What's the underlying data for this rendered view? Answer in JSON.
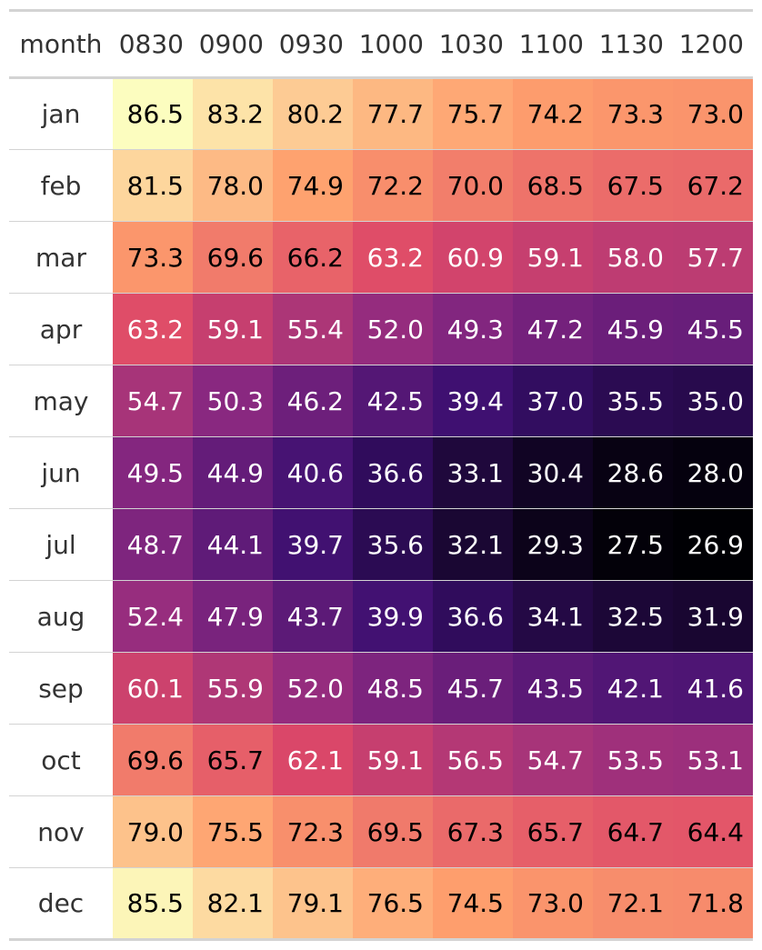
{
  "chart_data": {
    "type": "heatmap",
    "row_header": "month",
    "columns": [
      "0830",
      "0900",
      "0930",
      "1000",
      "1030",
      "1100",
      "1130",
      "1200"
    ],
    "rows": [
      {
        "label": "jan",
        "values": [
          86.5,
          83.2,
          80.2,
          77.7,
          75.7,
          74.2,
          73.3,
          73.0
        ]
      },
      {
        "label": "feb",
        "values": [
          81.5,
          78.0,
          74.9,
          72.2,
          70.0,
          68.5,
          67.5,
          67.2
        ]
      },
      {
        "label": "mar",
        "values": [
          73.3,
          69.6,
          66.2,
          63.2,
          60.9,
          59.1,
          58.0,
          57.7
        ]
      },
      {
        "label": "apr",
        "values": [
          63.2,
          59.1,
          55.4,
          52.0,
          49.3,
          47.2,
          45.9,
          45.5
        ]
      },
      {
        "label": "may",
        "values": [
          54.7,
          50.3,
          46.2,
          42.5,
          39.4,
          37.0,
          35.5,
          35.0
        ]
      },
      {
        "label": "jun",
        "values": [
          49.5,
          44.9,
          40.6,
          36.6,
          33.1,
          30.4,
          28.6,
          28.0
        ]
      },
      {
        "label": "jul",
        "values": [
          48.7,
          44.1,
          39.7,
          35.6,
          32.1,
          29.3,
          27.5,
          26.9
        ]
      },
      {
        "label": "aug",
        "values": [
          52.4,
          47.9,
          43.7,
          39.9,
          36.6,
          34.1,
          32.5,
          31.9
        ]
      },
      {
        "label": "sep",
        "values": [
          60.1,
          55.9,
          52.0,
          48.5,
          45.7,
          43.5,
          42.1,
          41.6
        ]
      },
      {
        "label": "oct",
        "values": [
          69.6,
          65.7,
          62.1,
          59.1,
          56.5,
          54.7,
          53.5,
          53.1
        ]
      },
      {
        "label": "nov",
        "values": [
          79.0,
          75.5,
          72.3,
          69.5,
          67.3,
          65.7,
          64.7,
          64.4
        ]
      },
      {
        "label": "dec",
        "values": [
          85.5,
          82.1,
          79.1,
          76.5,
          74.5,
          73.0,
          72.1,
          71.8
        ]
      }
    ],
    "value_range": [
      26.9,
      86.5
    ],
    "colormap": "magma",
    "colormap_stops": [
      "#000004",
      "#3b0f70",
      "#8c2981",
      "#de4968",
      "#fe9f6d",
      "#fcfdbf"
    ],
    "decimals": 1
  }
}
